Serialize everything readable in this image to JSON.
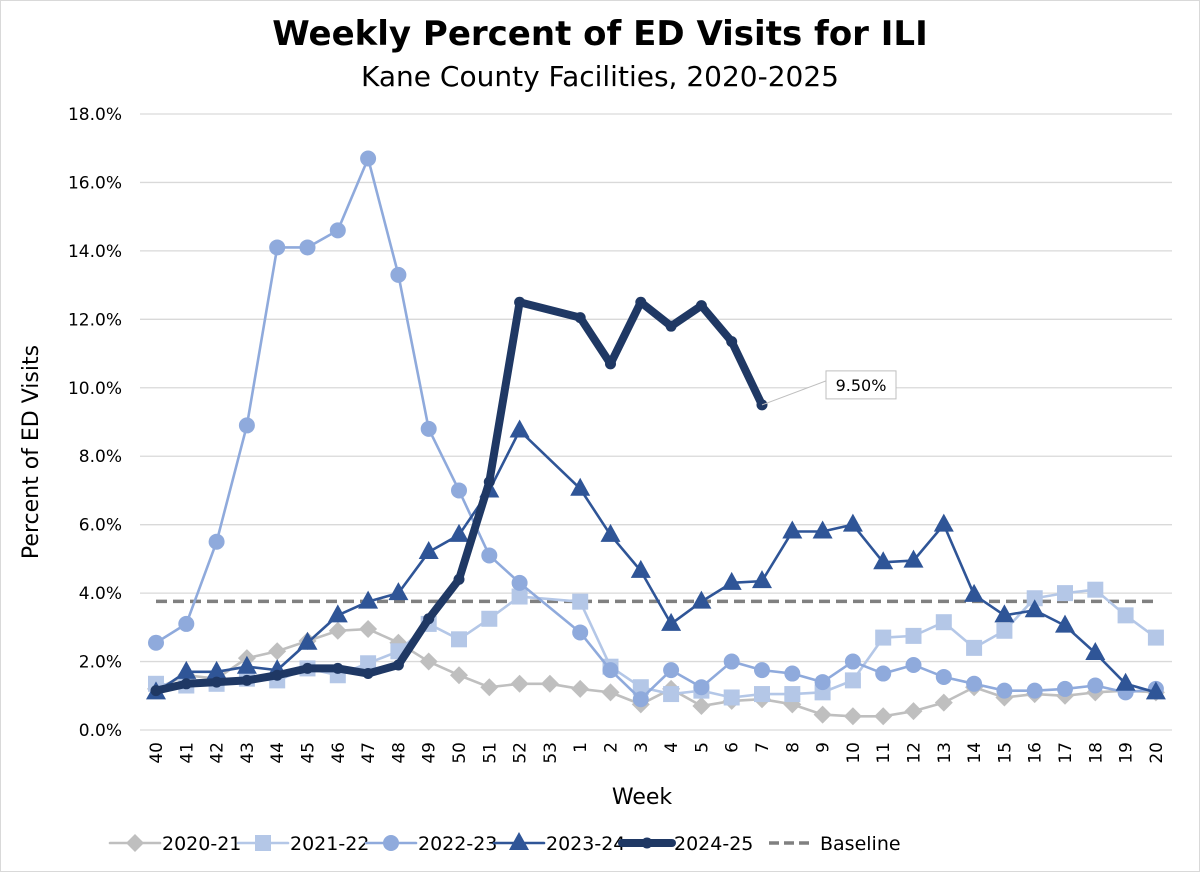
{
  "chart_data": {
    "type": "line",
    "title": "Weekly Percent of ED Visits for ILI",
    "subtitle": "Kane County Facilities, 2020-2025",
    "xlabel": "Week",
    "ylabel": "Percent of ED Visits",
    "ylim": [
      0,
      18
    ],
    "yticks": [
      0,
      2,
      4,
      6,
      8,
      10,
      12,
      14,
      16,
      18
    ],
    "ytick_labels": [
      "0.0%",
      "2.0%",
      "4.0%",
      "6.0%",
      "8.0%",
      "10.0%",
      "12.0%",
      "14.0%",
      "16.0%",
      "18.0%"
    ],
    "grid": true,
    "legend_position": "bottom",
    "categories": [
      "40",
      "41",
      "42",
      "43",
      "44",
      "45",
      "46",
      "47",
      "48",
      "49",
      "50",
      "51",
      "52",
      "53",
      "1",
      "2",
      "3",
      "4",
      "5",
      "6",
      "7",
      "8",
      "9",
      "10",
      "11",
      "12",
      "13",
      "14",
      "15",
      "16",
      "17",
      "18",
      "19",
      "20"
    ],
    "series": [
      {
        "name": "2020-21",
        "color": "#bfbfbf",
        "marker": "diamond",
        "style": "thin",
        "values": [
          1.2,
          1.6,
          1.5,
          2.1,
          2.3,
          2.6,
          2.9,
          2.95,
          2.55,
          2.0,
          1.6,
          1.25,
          1.35,
          1.35,
          1.2,
          1.1,
          0.75,
          1.2,
          0.7,
          0.85,
          0.9,
          0.75,
          0.45,
          0.4,
          0.4,
          0.55,
          0.8,
          1.25,
          0.95,
          1.05,
          1.0,
          1.1,
          1.15,
          1.1
        ]
      },
      {
        "name": "2021-22",
        "color": "#b4c7e7",
        "marker": "square",
        "style": "thin",
        "values": [
          1.35,
          1.3,
          1.35,
          1.5,
          1.45,
          1.8,
          1.6,
          1.95,
          2.3,
          3.1,
          2.65,
          3.25,
          3.9,
          null,
          3.75,
          1.85,
          1.25,
          1.05,
          1.15,
          0.95,
          1.05,
          1.05,
          1.1,
          1.45,
          2.7,
          2.75,
          3.15,
          2.4,
          2.9,
          3.85,
          4.0,
          4.1,
          3.35,
          2.7
        ]
      },
      {
        "name": "2022-23",
        "color": "#8faadc",
        "marker": "circle",
        "style": "thin",
        "values": [
          2.55,
          3.1,
          5.5,
          8.9,
          14.1,
          14.1,
          14.6,
          16.7,
          13.3,
          8.8,
          7.0,
          5.1,
          4.3,
          null,
          2.85,
          1.75,
          0.9,
          1.75,
          1.25,
          2.0,
          1.75,
          1.65,
          1.4,
          2.0,
          1.65,
          1.9,
          1.55,
          1.35,
          1.15,
          1.15,
          1.2,
          1.3,
          1.1,
          1.2
        ]
      },
      {
        "name": "2023-24",
        "color": "#2f5597",
        "marker": "triangle",
        "style": "thin",
        "values": [
          1.1,
          1.7,
          1.7,
          1.85,
          1.75,
          2.55,
          3.35,
          3.75,
          4.0,
          5.2,
          5.7,
          7.0,
          8.75,
          null,
          7.05,
          5.7,
          4.65,
          3.1,
          3.75,
          4.3,
          4.35,
          5.8,
          5.8,
          6.0,
          4.9,
          4.95,
          6.0,
          3.95,
          3.35,
          3.5,
          3.05,
          2.25,
          1.35,
          1.1
        ]
      },
      {
        "name": "2024-25",
        "color": "#1f3864",
        "marker": "circle-small",
        "style": "thick",
        "values": [
          1.15,
          1.35,
          1.4,
          1.45,
          1.6,
          1.8,
          1.8,
          1.65,
          1.9,
          3.25,
          4.4,
          7.25,
          12.5,
          null,
          12.05,
          10.7,
          12.5,
          11.8,
          12.4,
          11.35,
          9.5,
          null,
          null,
          null,
          null,
          null,
          null,
          null,
          null,
          null,
          null,
          null,
          null,
          null
        ]
      }
    ],
    "baseline": {
      "name": "Baseline",
      "value": 3.76,
      "color": "#808080",
      "style": "dashed"
    },
    "annotations": [
      {
        "category": "7",
        "series": "2024-25",
        "text": "9.50%"
      }
    ]
  }
}
